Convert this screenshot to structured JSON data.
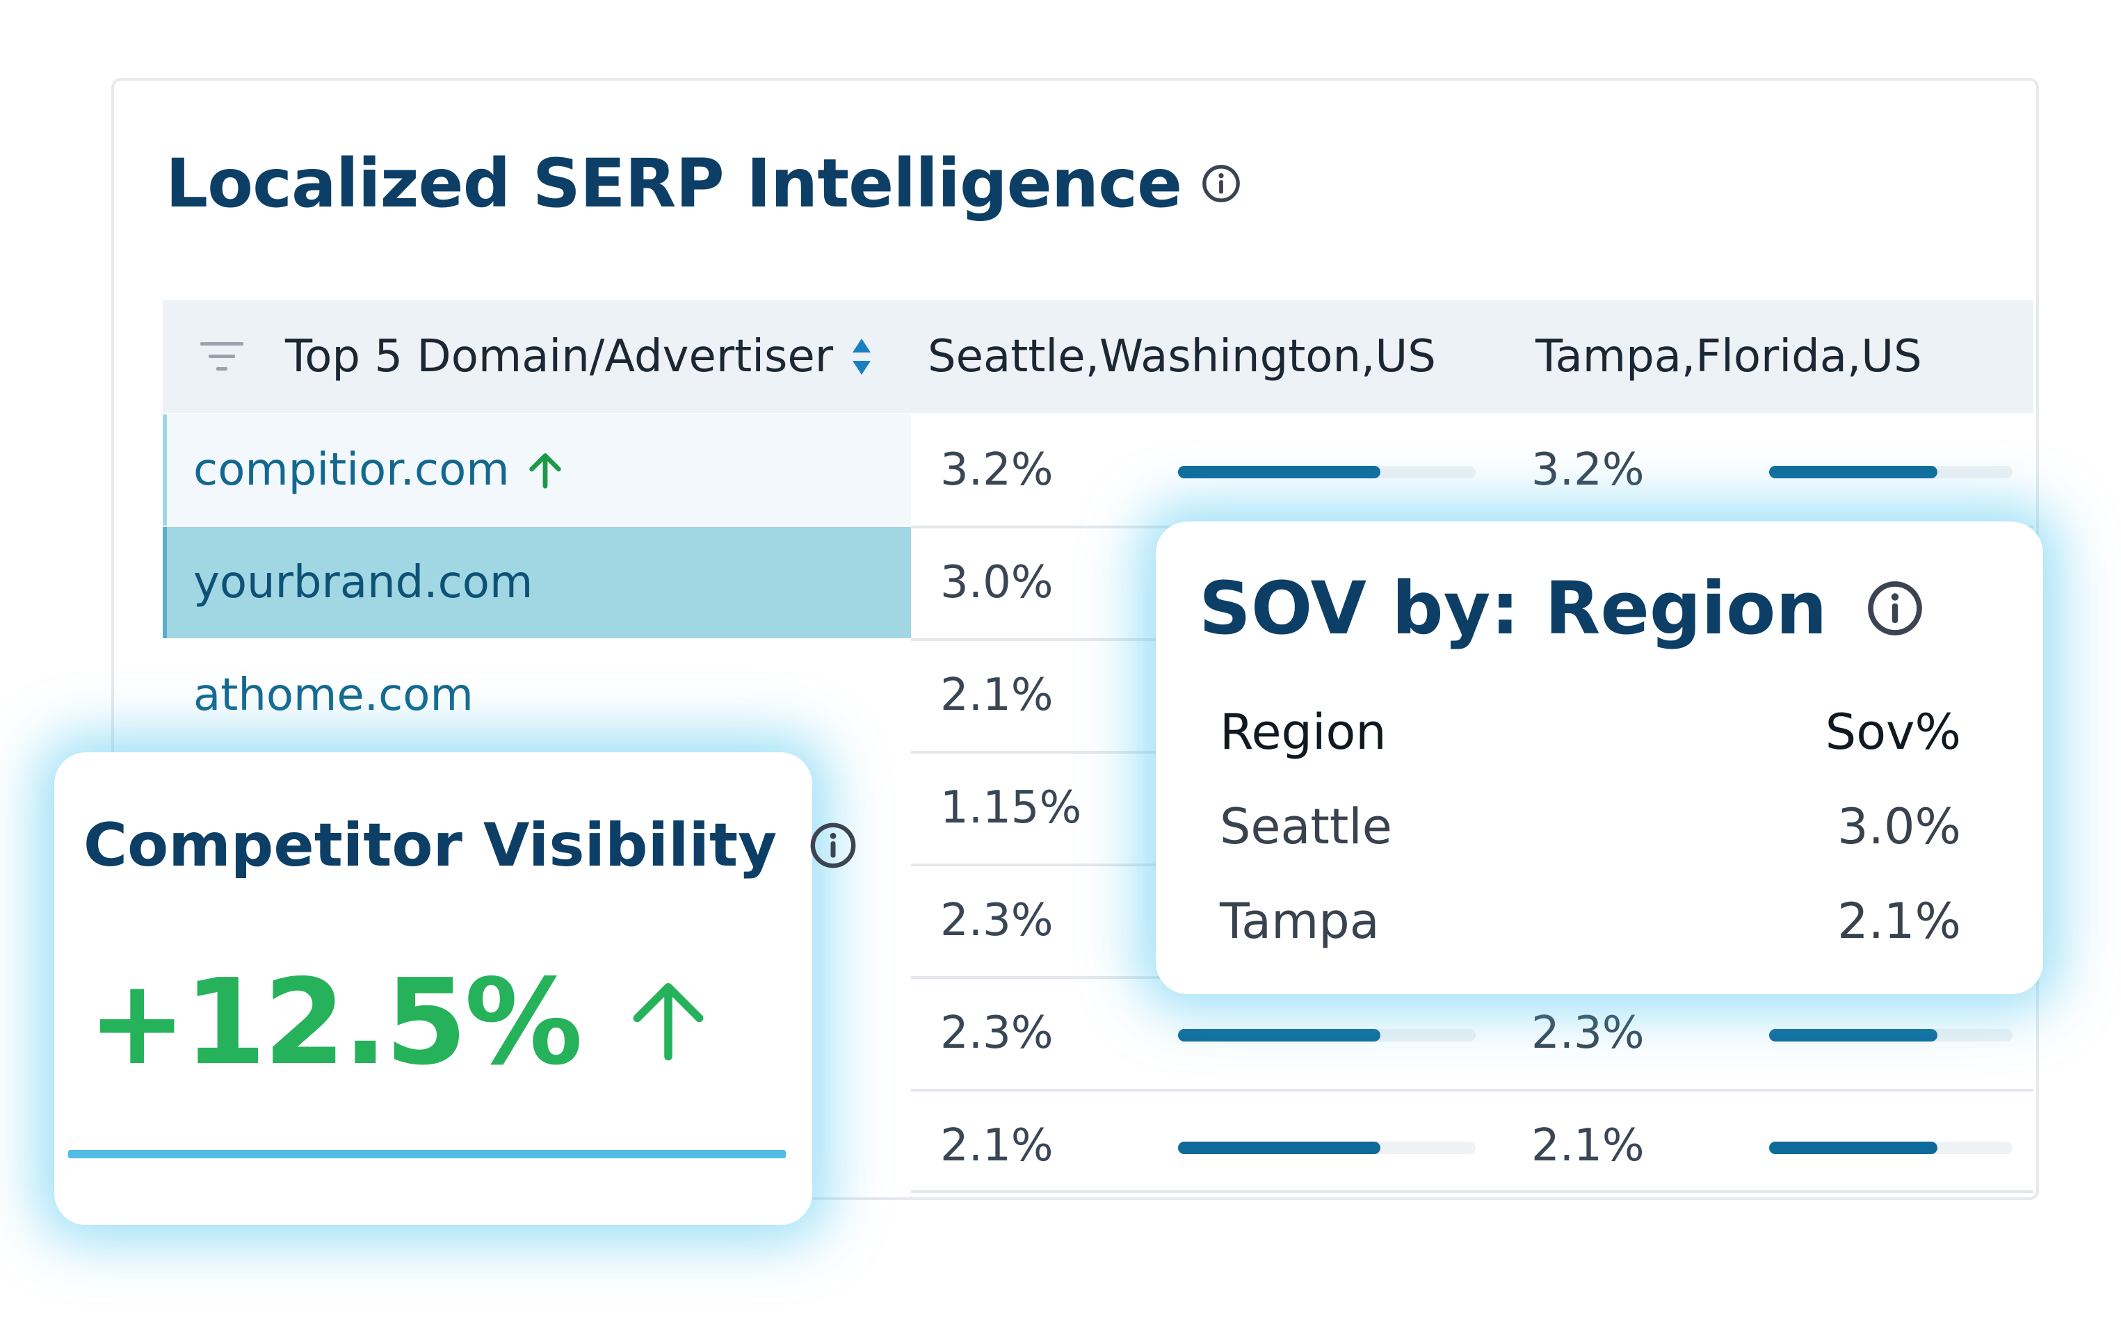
{
  "panel": {
    "title": "Localized SERP Intelligence",
    "info_icon": "info-circle-icon"
  },
  "table": {
    "header": {
      "filter_icon": "filter-icon",
      "col_domain": "Top 5 Domain/Advertiser",
      "sort_icon": "sort-icon",
      "col_seattle": "Seattle,Washington,US",
      "col_tampa": "Tampa,Florida,US"
    },
    "rows": [
      {
        "domain": "compitior.com",
        "trend_icon": "arrow-up-icon",
        "seattle": "3.2%",
        "seattle_bar": 0.68,
        "tampa": "3.2%",
        "tampa_bar": 0.69
      },
      {
        "domain": "yourbrand.com",
        "seattle": "3.0%"
      },
      {
        "domain": "athome.com",
        "seattle": "2.1%"
      },
      {
        "seattle": "1.15%"
      },
      {
        "seattle": "2.3%"
      },
      {
        "seattle": "2.3%",
        "seattle_bar": 0.68,
        "tampa": "2.3%",
        "tampa_bar": 0.69
      },
      {
        "seattle": "2.1%",
        "seattle_bar": 0.68,
        "tampa": "2.1%",
        "tampa_bar": 0.69
      }
    ]
  },
  "sov_card": {
    "title": "SOV by: Region",
    "info_icon": "info-circle-icon",
    "col_region": "Region",
    "col_sov": "Sov%",
    "rows": [
      {
        "region": "Seattle",
        "sov": "3.0%"
      },
      {
        "region": "Tampa",
        "sov": "2.1%"
      }
    ]
  },
  "competitor_card": {
    "title": "Competitor Visibility",
    "info_icon": "info-circle-icon",
    "value": "+12.5%",
    "trend_icon": "arrow-up-icon",
    "value_color": "#26b25b"
  },
  "colors": {
    "title": "#0d3f66",
    "link": "#14688f",
    "bar": "#0e6a99",
    "selected_row": "#a1d6e3",
    "glow": "#48c4f0"
  }
}
